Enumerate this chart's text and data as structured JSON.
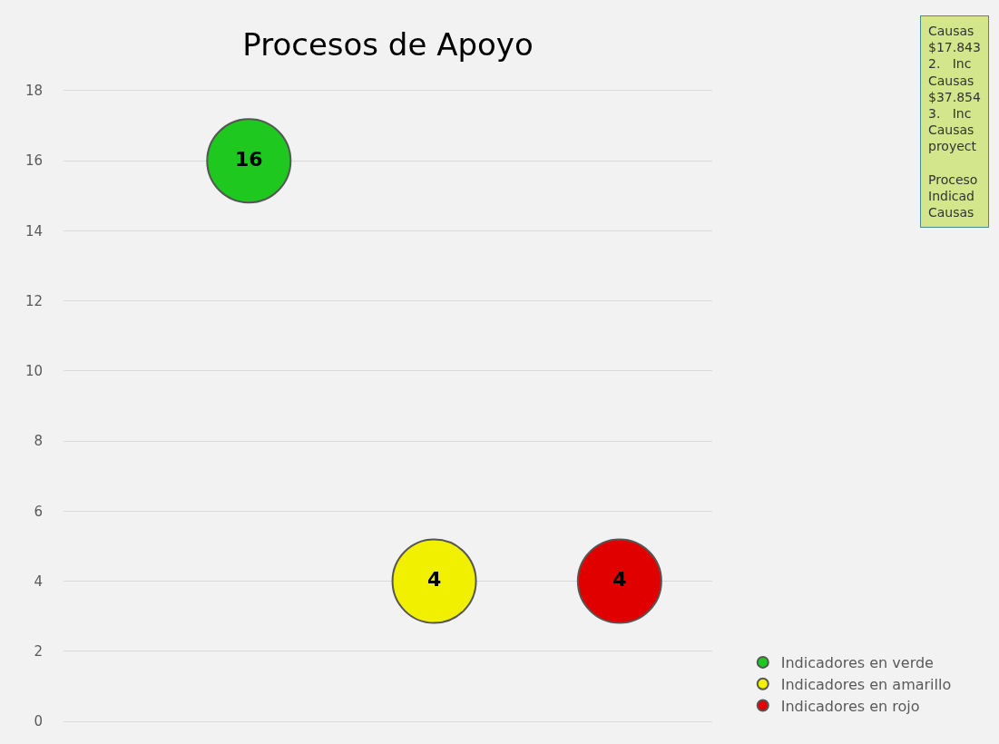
{
  "chart_data": {
    "type": "scatter",
    "title": "Procesos de Apoyo",
    "categories": [
      null,
      null,
      null
    ],
    "series": [
      {
        "name": "Indicadores en verde",
        "color": "#1ec81e",
        "values": [
          16,
          null,
          null
        ]
      },
      {
        "name": "Indicadores en amarillo",
        "color": "#f0f000",
        "values": [
          null,
          4,
          null
        ]
      },
      {
        "name": "Indicadores en rojo",
        "color": "#e00000",
        "values": [
          null,
          null,
          4
        ]
      }
    ],
    "ylim": [
      0,
      18
    ],
    "yticks": [
      0,
      2,
      4,
      6,
      8,
      10,
      12,
      14,
      16,
      18
    ],
    "grid": "y",
    "legend": "bottom right",
    "marker": "circle",
    "data_labels": true,
    "tick_labels": "y",
    "annotations": [
      "Causas\n$17.843\n2.   Inc\nCausas\n$37.854\n3.   Inc\nCausas\nproyect\n\nProceso\nIndicad\nCausas"
    ]
  }
}
